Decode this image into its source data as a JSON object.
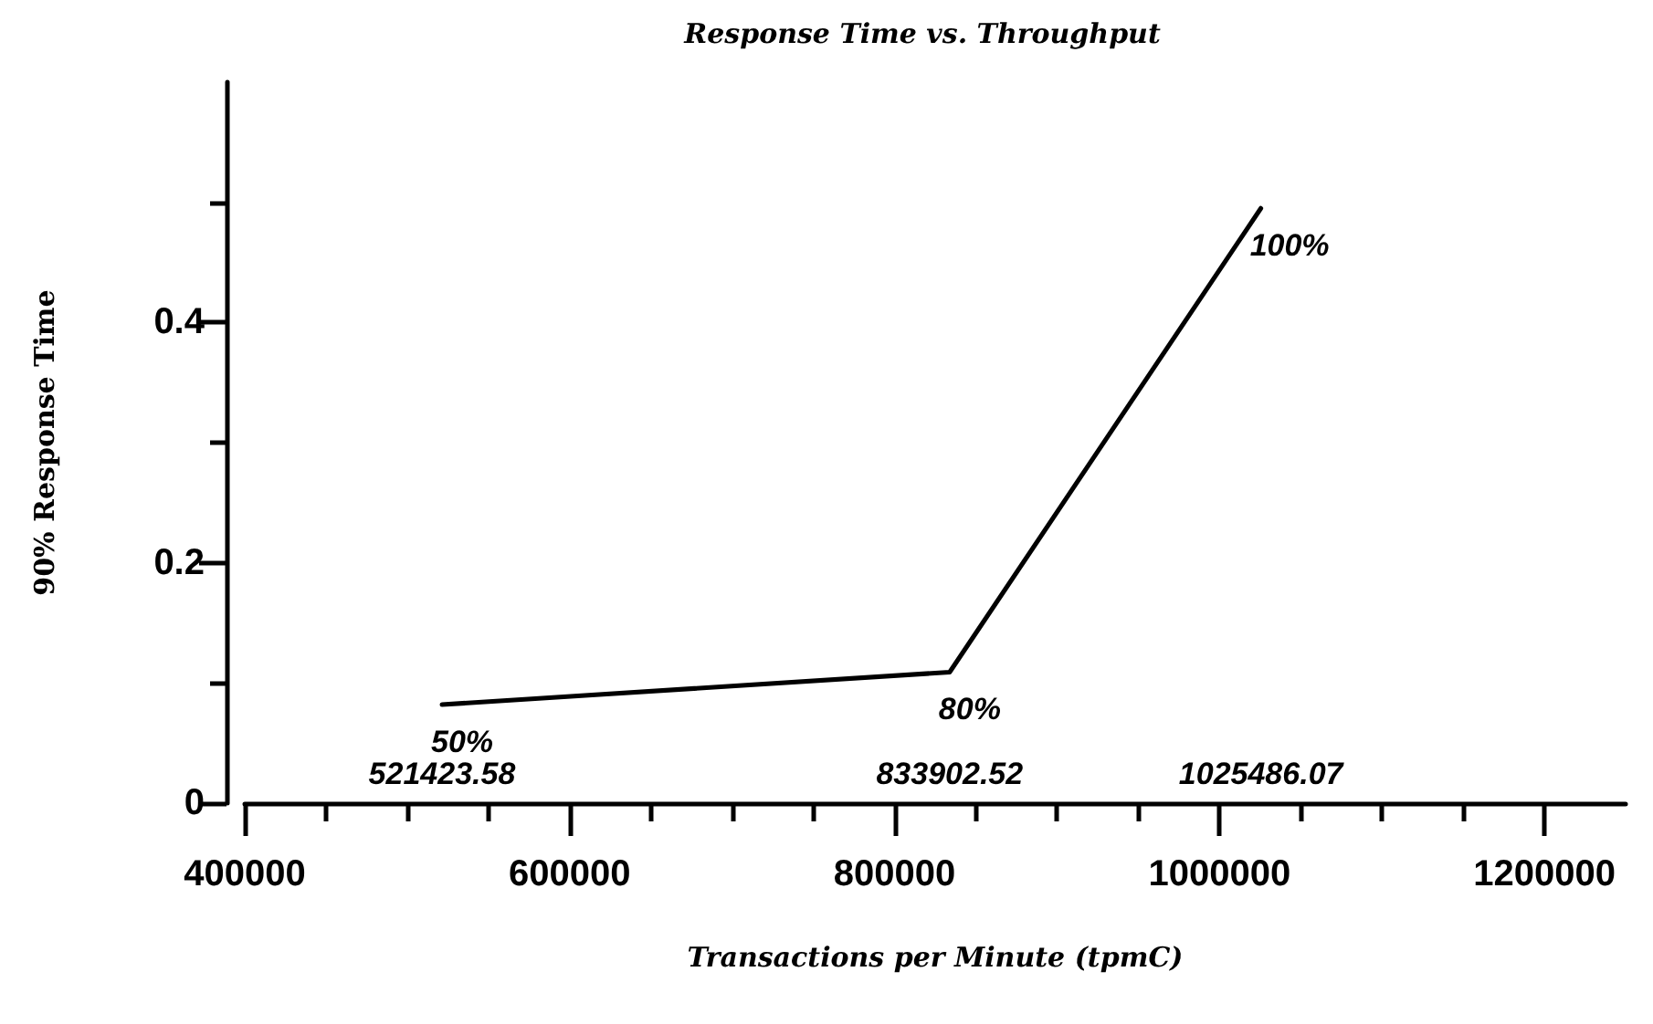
{
  "chart_data": {
    "type": "line",
    "title": "Response Time vs. Throughput",
    "xlabel": "Transactions per Minute (tpmC)",
    "ylabel": "90% Response Time",
    "x": [
      521423.58,
      833902.52,
      1025486.07
    ],
    "series": [
      {
        "color": "#000000",
        "values": [
          0.082,
          0.109,
          0.495
        ]
      }
    ],
    "annotations": [
      {
        "text": "50%",
        "x": 521423.58,
        "y": 0.082
      },
      {
        "text": "80%",
        "x": 833902.52,
        "y": 0.109
      },
      {
        "text": "100%",
        "x": 1025486.07,
        "y": 0.495
      },
      "521423.58",
      "833902.52",
      "1025486.07"
    ],
    "xlim": [
      400000,
      1250000
    ],
    "xticks": [
      400000,
      {
        "value": 450000,
        "label": null
      },
      {
        "value": 500000,
        "label": null
      },
      {
        "value": 550000,
        "label": null
      },
      600000,
      {
        "value": 650000,
        "label": null
      },
      {
        "value": 700000,
        "label": null
      },
      {
        "value": 750000,
        "label": null
      },
      800000,
      {
        "value": 850000,
        "label": null
      },
      {
        "value": 900000,
        "label": null
      },
      {
        "value": 950000,
        "label": null
      },
      1000000,
      {
        "value": 1050000,
        "label": null
      },
      {
        "value": 1100000,
        "label": null
      },
      {
        "value": 1150000,
        "label": null
      },
      1200000
    ],
    "ylim": [
      0,
      0.6
    ],
    "yticks": [
      0,
      {
        "value": 0.1,
        "label": null
      },
      0.2,
      {
        "value": 0.3,
        "label": null
      },
      0.4,
      {
        "value": 0.5,
        "label": null
      }
    ],
    "grid": false,
    "marker": "none",
    "line_style": "solid"
  }
}
